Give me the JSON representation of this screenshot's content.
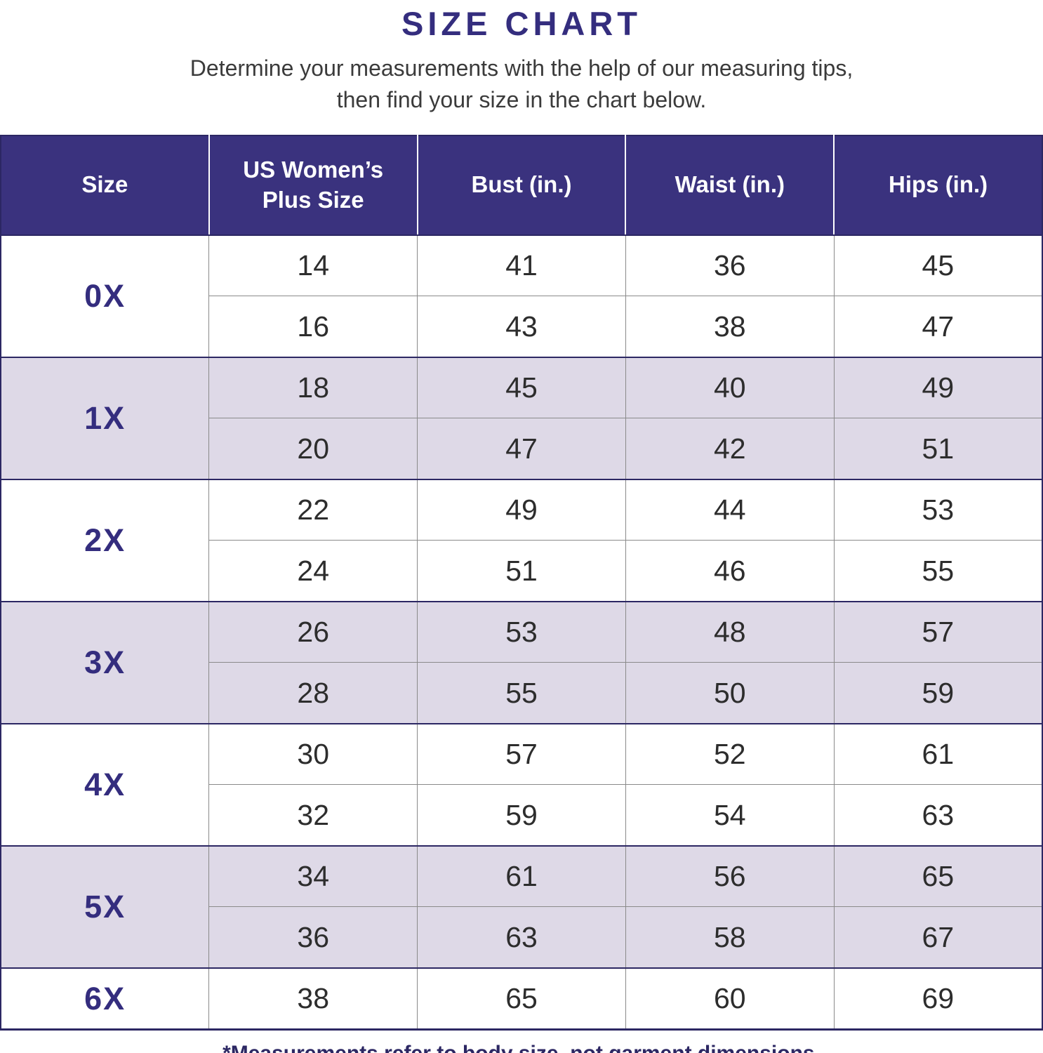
{
  "title": "SIZE CHART",
  "subtitle": {
    "line1": "Determine your measurements with the help of our measuring tips,",
    "line2": "then find your size in the chart below."
  },
  "footnote": "*Measurements refer to body size, not garment dimensions.",
  "colors": {
    "header_background": "#3a327e",
    "accent_purple": "#342d7e",
    "band_lavender": "#ded9e7",
    "band_white": "#ffffff",
    "group_border": "#2c2763",
    "cell_border": "#8a8a8a",
    "data_text": "#2d2d2d"
  },
  "chart_data": {
    "type": "table",
    "title": "SIZE CHART",
    "columns": [
      "Size",
      "US Women’s Plus Size",
      "Bust (in.)",
      "Waist (in.)",
      "Hips (in.)"
    ],
    "groups": [
      {
        "size": "0X",
        "rows": [
          [
            "14",
            "41",
            "36",
            "45"
          ],
          [
            "16",
            "43",
            "38",
            "47"
          ]
        ]
      },
      {
        "size": "1X",
        "rows": [
          [
            "18",
            "45",
            "40",
            "49"
          ],
          [
            "20",
            "47",
            "42",
            "51"
          ]
        ]
      },
      {
        "size": "2X",
        "rows": [
          [
            "22",
            "49",
            "44",
            "53"
          ],
          [
            "24",
            "51",
            "46",
            "55"
          ]
        ]
      },
      {
        "size": "3X",
        "rows": [
          [
            "26",
            "53",
            "48",
            "57"
          ],
          [
            "28",
            "55",
            "50",
            "59"
          ]
        ]
      },
      {
        "size": "4X",
        "rows": [
          [
            "30",
            "57",
            "52",
            "61"
          ],
          [
            "32",
            "59",
            "54",
            "63"
          ]
        ]
      },
      {
        "size": "5X",
        "rows": [
          [
            "34",
            "61",
            "56",
            "65"
          ],
          [
            "36",
            "63",
            "58",
            "67"
          ]
        ]
      },
      {
        "size": "6X",
        "rows": [
          [
            "38",
            "65",
            "60",
            "69"
          ]
        ]
      }
    ]
  }
}
